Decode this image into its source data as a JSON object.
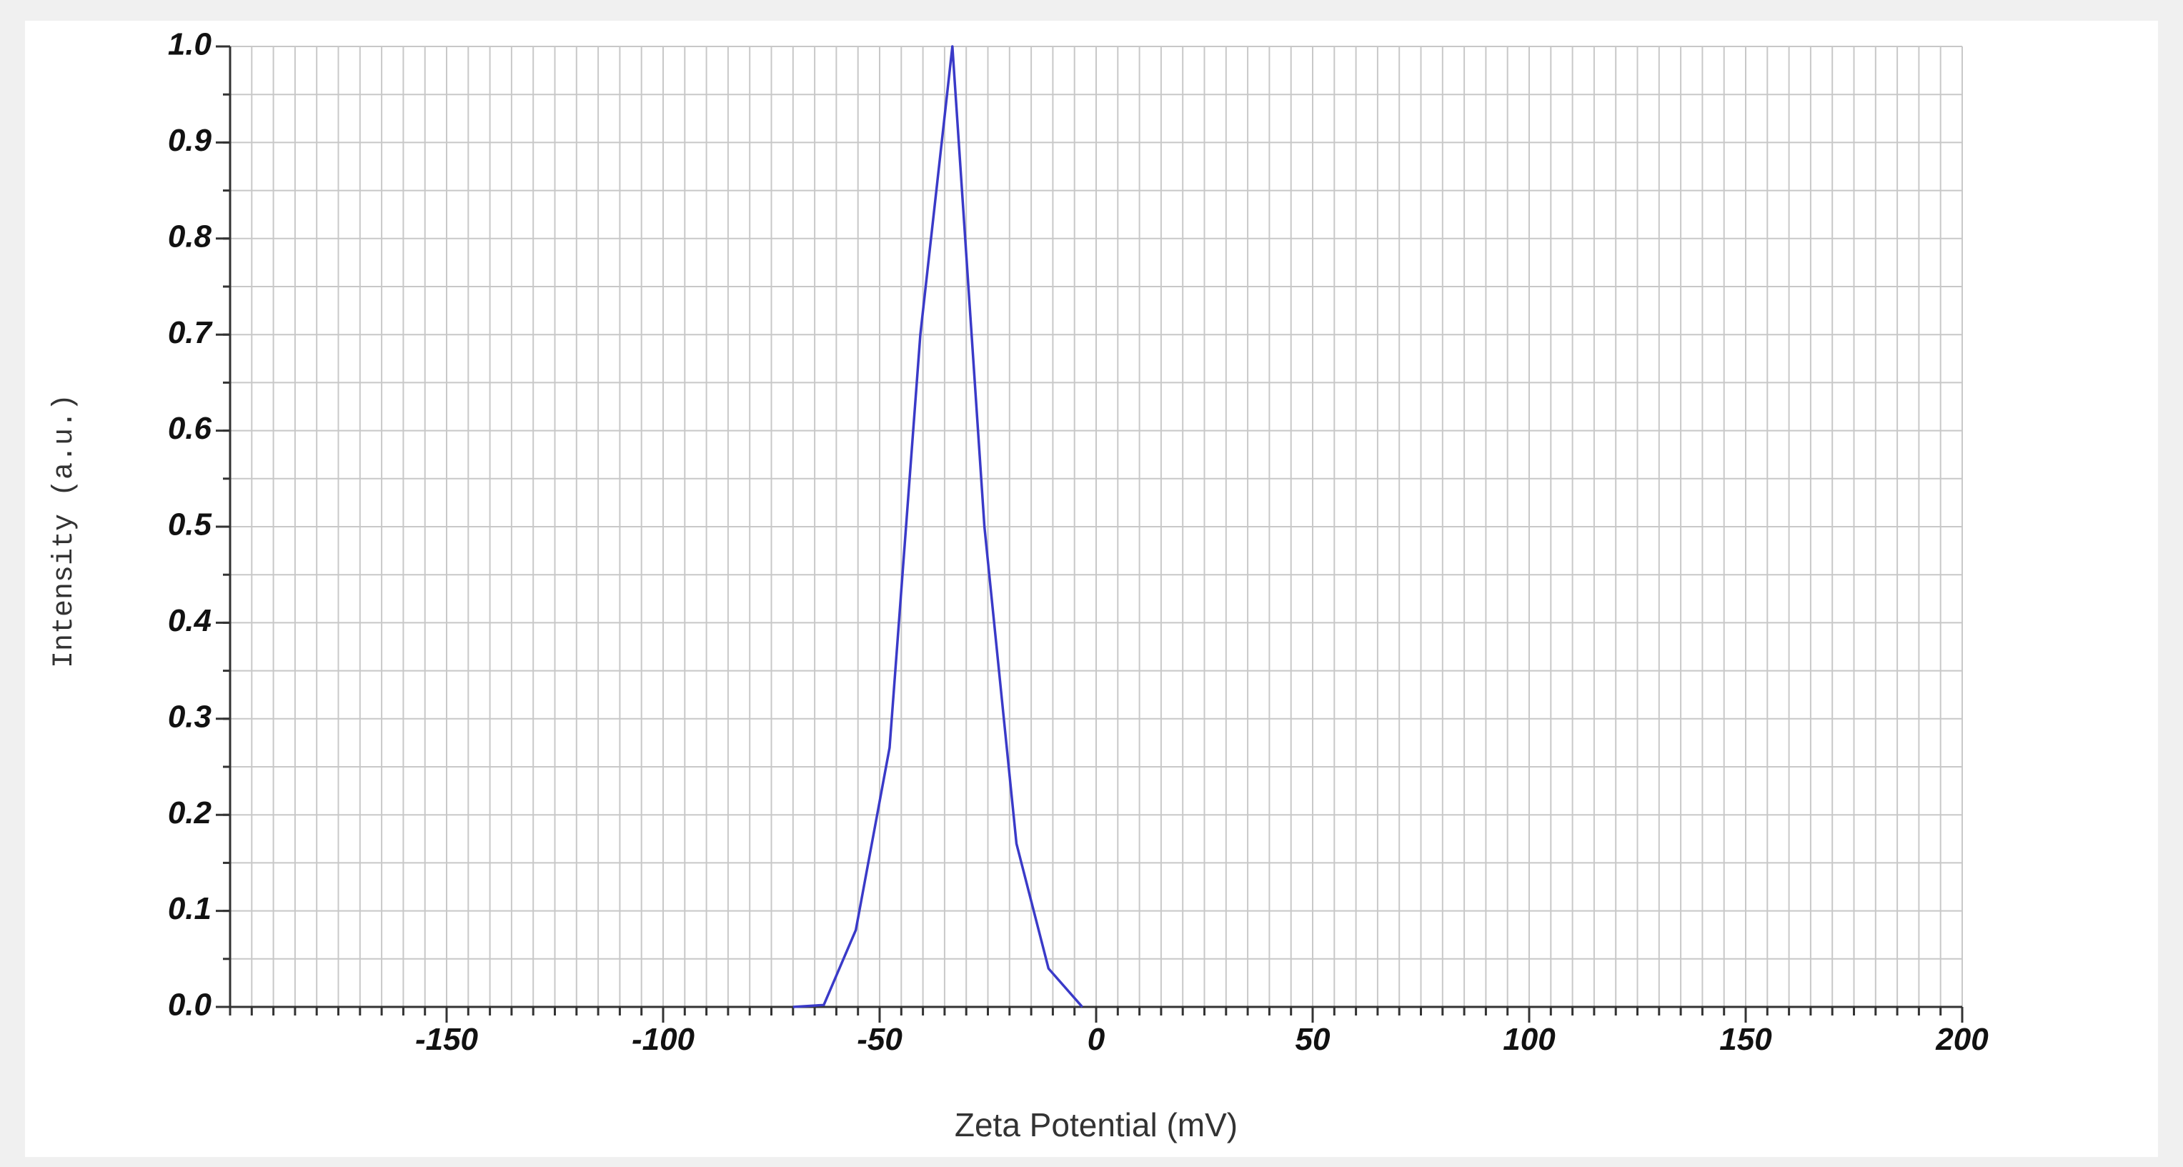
{
  "chart_data": {
    "type": "line",
    "xlabel": "Zeta Potential (mV)",
    "ylabel": "Intensity (a.u.)",
    "xlim": [
      -200,
      200
    ],
    "ylim": [
      0,
      1
    ],
    "xticks": [
      -150,
      -100,
      -50,
      0,
      50,
      100,
      150,
      200
    ],
    "yticks": [
      {
        "value": 0,
        "label": "0.0"
      },
      0.1,
      0.2,
      0.3,
      0.4,
      0.5,
      0.6,
      0.7,
      0.8,
      0.9,
      {
        "value": 1,
        "label": "1.0"
      }
    ],
    "grid": true,
    "x_minor_step": 5,
    "y_minor_step": 0.05,
    "series": [
      {
        "color": "#3a3ac8",
        "x": [
          -70,
          -62.9,
          -55.5,
          -47.7,
          -40.6,
          -33.2,
          -25.8,
          -18.4,
          -11,
          -3.2
        ],
        "values": [
          0,
          0.002,
          0.08,
          0.27,
          0.7,
          1.0,
          0.5,
          0.17,
          0.04,
          0
        ]
      }
    ]
  }
}
